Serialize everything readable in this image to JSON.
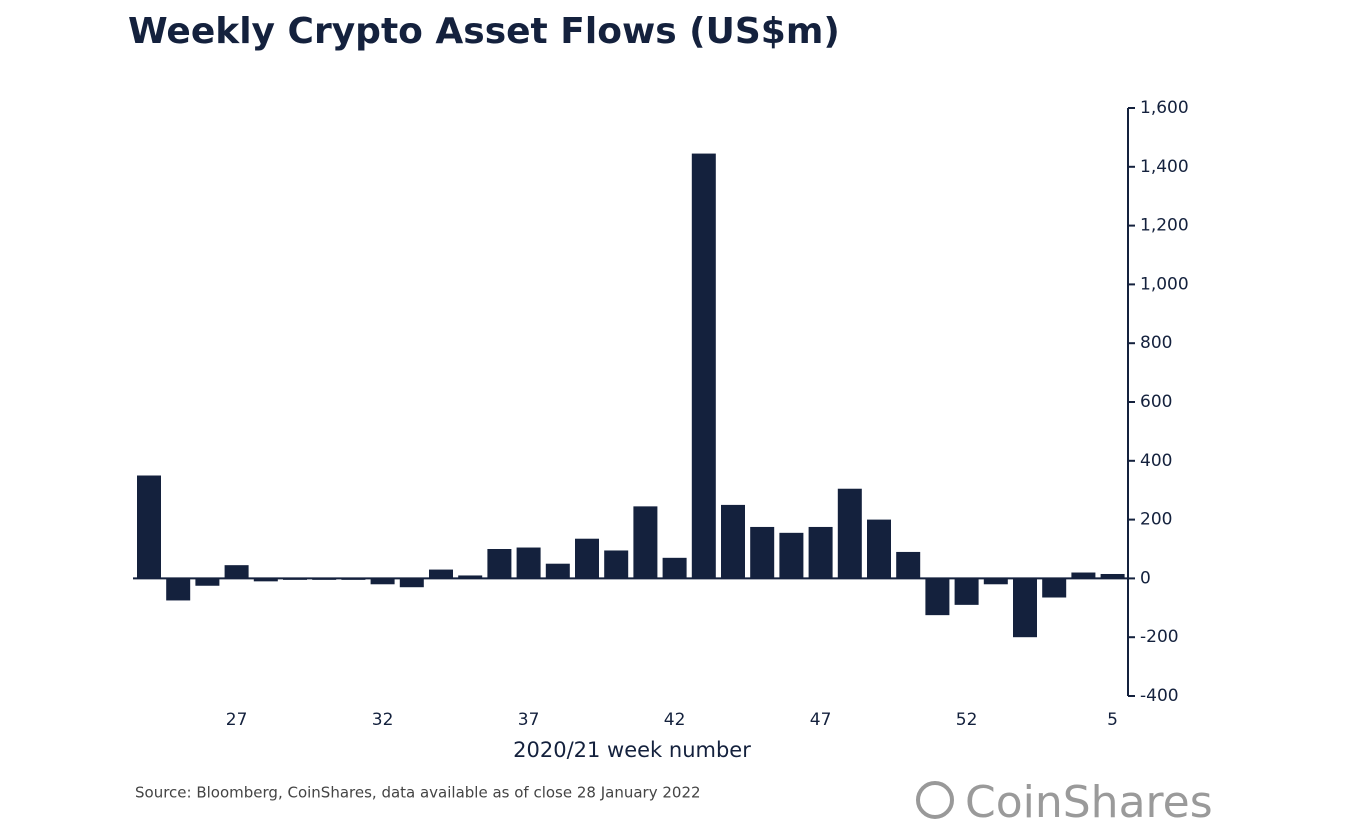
{
  "chart_data": {
    "type": "bar",
    "title": "Weekly Crypto Asset Flows (US$m)",
    "x_label": "2020/21 week number",
    "source": "Source: Bloomberg, CoinShares, data available as of close 28 January 2022",
    "brand": "CoinShares",
    "color": "#14213d",
    "categories": [
      null,
      null,
      null,
      "27",
      null,
      null,
      null,
      null,
      "32",
      null,
      null,
      null,
      null,
      "37",
      null,
      null,
      null,
      null,
      "42",
      null,
      null,
      null,
      null,
      "47",
      null,
      null,
      null,
      null,
      "52",
      null,
      null,
      null,
      null,
      "5"
    ],
    "values": [
      350,
      -75,
      -25,
      45,
      -10,
      -5,
      -5,
      -5,
      -20,
      -30,
      30,
      10,
      100,
      105,
      50,
      135,
      95,
      245,
      70,
      1445,
      250,
      175,
      155,
      175,
      305,
      200,
      90,
      -125,
      -90,
      -20,
      -200,
      -65,
      20,
      15
    ],
    "ylim": [
      -400,
      1600
    ],
    "yticks": [
      -400,
      -200,
      0,
      200,
      400,
      600,
      800,
      {
        "value": 1000,
        "label": "1,000"
      },
      {
        "value": 1200,
        "label": "1,200"
      },
      {
        "value": 1400,
        "label": "1,400"
      },
      {
        "value": 1600,
        "label": "1,600"
      }
    ],
    "y_axis_side": "right"
  }
}
